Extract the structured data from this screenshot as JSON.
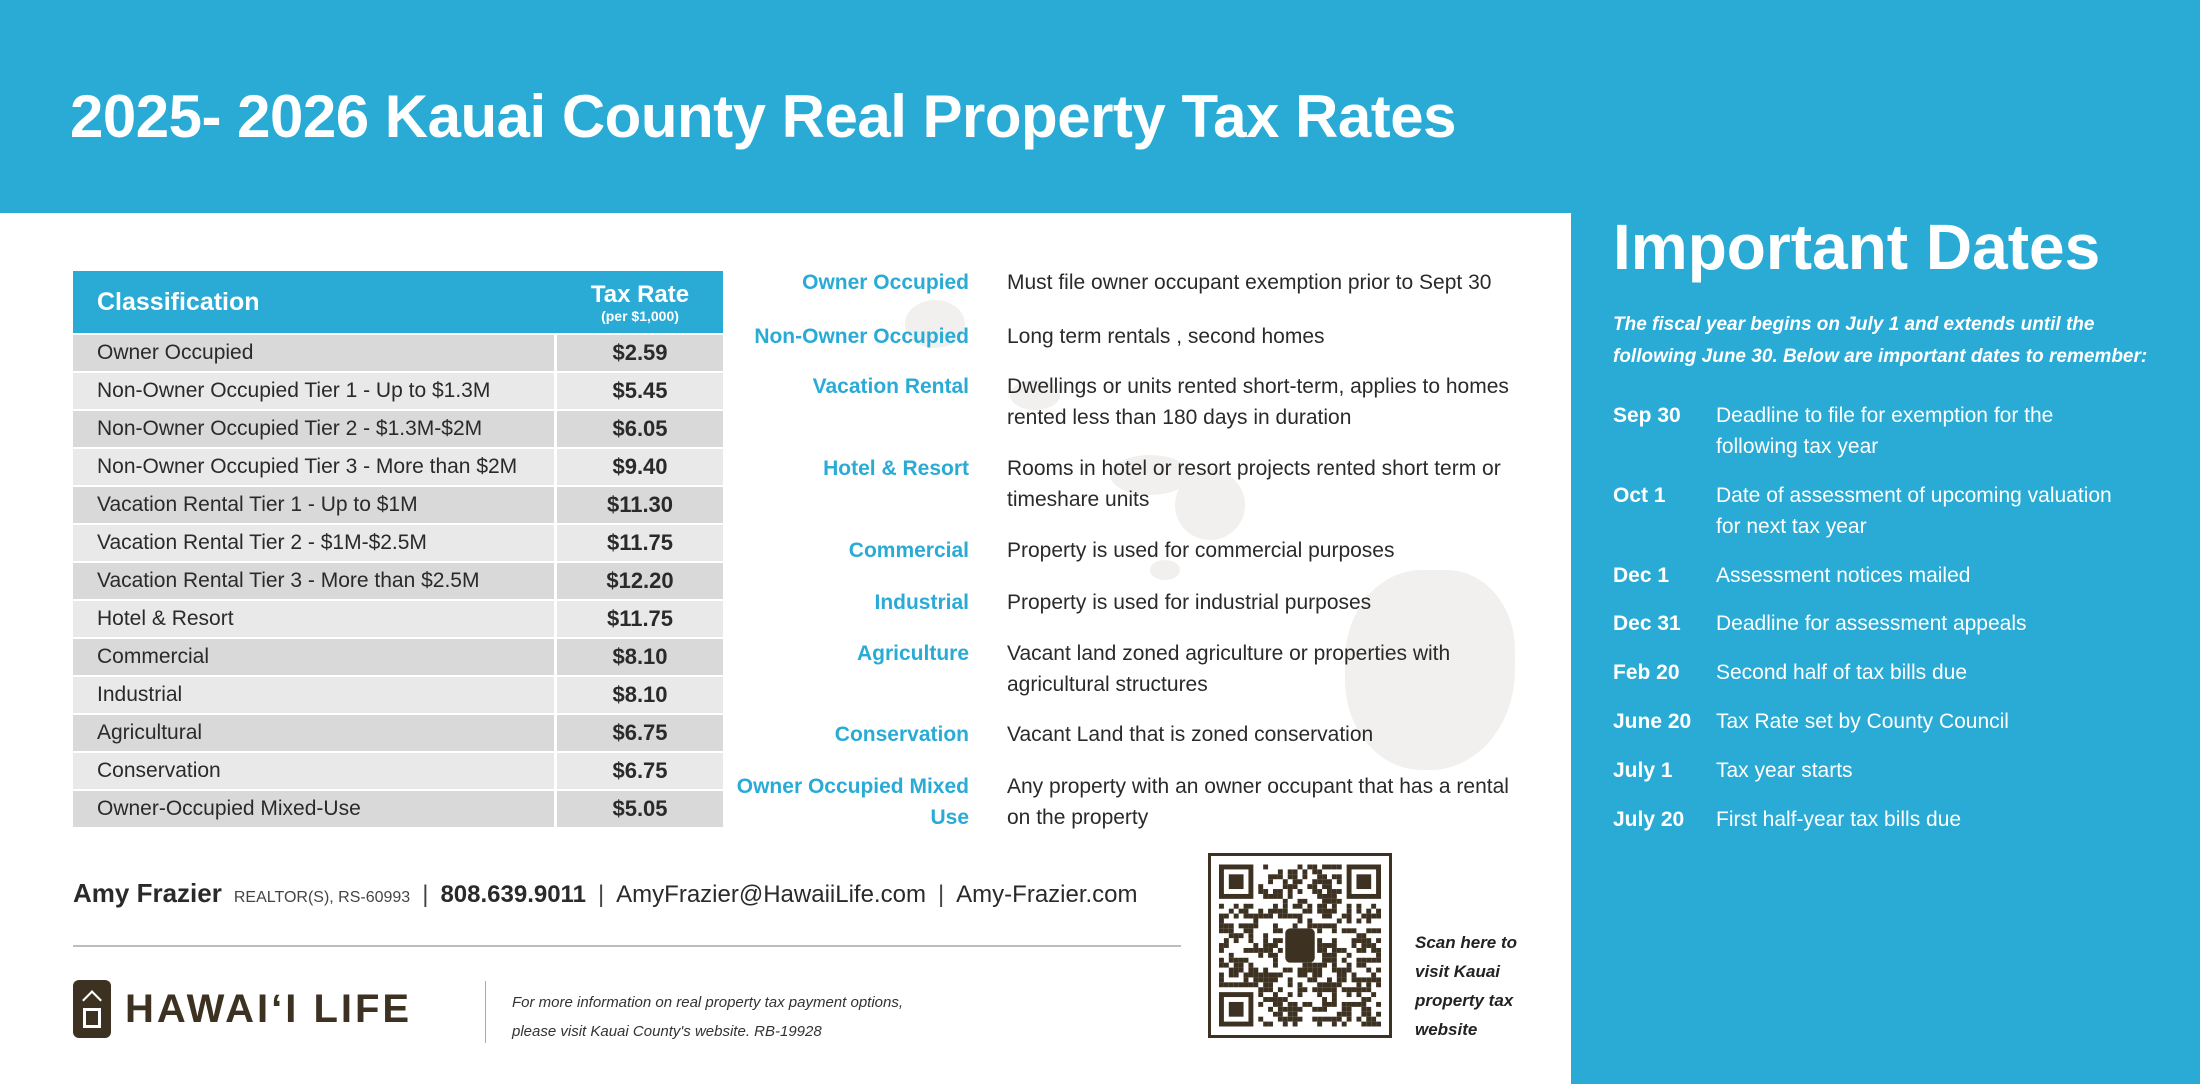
{
  "title": "2025- 2026 Kauai County Real Property Tax Rates",
  "table": {
    "col_classification": "Classification",
    "col_rate": "Tax Rate",
    "col_rate_sub": "(per $1,000)",
    "rows": [
      {
        "name": "Owner Occupied",
        "rate": "$2.59"
      },
      {
        "name": "Non-Owner Occupied Tier 1 - Up to $1.3M",
        "rate": "$5.45"
      },
      {
        "name": "Non-Owner Occupied Tier 2 - $1.3M-$2M",
        "rate": "$6.05"
      },
      {
        "name": "Non-Owner Occupied Tier 3 - More than $2M",
        "rate": "$9.40"
      },
      {
        "name": "Vacation Rental Tier 1 - Up to $1M",
        "rate": "$11.30"
      },
      {
        "name": "Vacation Rental Tier 2 - $1M-$2.5M",
        "rate": "$11.75"
      },
      {
        "name": "Vacation Rental Tier 3 - More than $2.5M",
        "rate": "$12.20"
      },
      {
        "name": "Hotel & Resort",
        "rate": "$11.75"
      },
      {
        "name": "Commercial",
        "rate": "$8.10"
      },
      {
        "name": "Industrial",
        "rate": "$8.10"
      },
      {
        "name": "Agricultural",
        "rate": "$6.75"
      },
      {
        "name": "Conservation",
        "rate": "$6.75"
      },
      {
        "name": "Owner-Occupied Mixed-Use",
        "rate": "$5.05"
      }
    ]
  },
  "definitions": [
    {
      "label": "Owner Occupied",
      "text": "Must file owner occupant exemption prior to Sept 30"
    },
    {
      "label": "Non-Owner Occupied",
      "text": "Long term rentals , second homes"
    },
    {
      "label": "Vacation Rental",
      "text": "Dwellings or units rented short-term, applies to homes rented less than 180 days in duration"
    },
    {
      "label": "Hotel & Resort",
      "text": "Rooms in hotel or resort projects rented short term or timeshare units"
    },
    {
      "label": "Commercial",
      "text": "Property is used for commercial purposes"
    },
    {
      "label": "Industrial",
      "text": "Property is used for industrial purposes"
    },
    {
      "label": "Agriculture",
      "text": "Vacant land zoned agriculture or properties with agricultural structures"
    },
    {
      "label": "Conservation",
      "text": "Vacant Land that is zoned conservation"
    },
    {
      "label": "Owner Occupied Mixed Use",
      "text": "Any property with an owner occupant that has a rental on the property"
    }
  ],
  "dates_panel": {
    "title": "Important Dates",
    "intro": "The fiscal year begins on July 1 and extends until the following June 30. Below are important dates to remember:",
    "items": [
      {
        "date": "Sep 30",
        "text": "Deadline to file for exemption for the following tax year"
      },
      {
        "date": "Oct 1",
        "text": "Date of assessment of upcoming valuation for next tax year"
      },
      {
        "date": "Dec 1",
        "text": "Assessment notices mailed"
      },
      {
        "date": "Dec 31",
        "text": "Deadline for assessment appeals"
      },
      {
        "date": "Feb 20",
        "text": "Second half of tax bills due"
      },
      {
        "date": "June 20",
        "text": "Tax Rate set by County Council"
      },
      {
        "date": "July 1",
        "text": "Tax year starts"
      },
      {
        "date": "July 20",
        "text": "First half-year tax bills due"
      }
    ]
  },
  "contact": {
    "name": "Amy Frazier",
    "license": "REALTOR(S), RS-60993",
    "phone": "808.639.9011",
    "email": "AmyFrazier@HawaiiLife.com",
    "website": "Amy-Frazier.com"
  },
  "brand": {
    "logo_text": "HAWAI‘I LIFE",
    "note": "For more information on real property tax payment options, please visit Kauai County's website. RB-19928",
    "color": "#3d3222"
  },
  "qr": {
    "caption": "Scan here to visit Kauai property tax website"
  },
  "colors": {
    "accent": "#29abd6"
  }
}
